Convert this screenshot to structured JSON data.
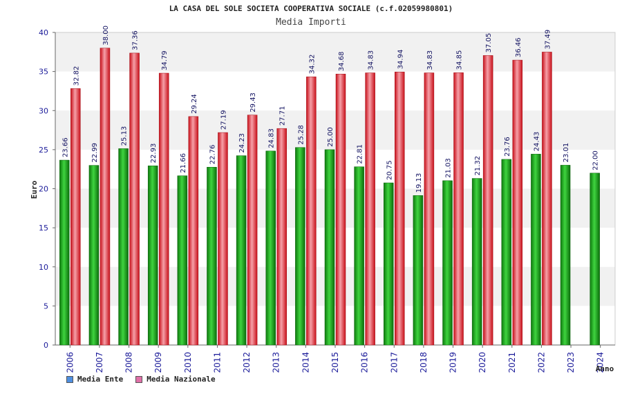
{
  "chart_data": {
    "type": "bar",
    "title": "LA CASA DEL SOLE SOCIETA COOPERATIVA SOCIALE (c.f.02059980801)",
    "subtitle": "Media Importi",
    "xlabel": "Anno",
    "ylabel": "Euro",
    "ylim": [
      0,
      40
    ],
    "yticks": [
      "0",
      "5",
      "10",
      "15",
      "20",
      "25",
      "30",
      "35",
      "40"
    ],
    "grid": "horizontal bands",
    "legend_position": "bottom-left",
    "categories": [
      "2006",
      "2007",
      "2008",
      "2009",
      "2010",
      "2011",
      "2012",
      "2013",
      "2014",
      "2015",
      "2016",
      "2017",
      "2018",
      "2019",
      "2020",
      "2021",
      "2022",
      "2023",
      "2024"
    ],
    "series": [
      {
        "name": "Media Ente",
        "color": "#22b022",
        "values": [
          23.66,
          22.99,
          25.13,
          22.93,
          21.66,
          22.76,
          24.23,
          24.83,
          25.28,
          25.0,
          22.81,
          20.75,
          19.13,
          21.03,
          21.32,
          23.76,
          24.43,
          23.01,
          22.0
        ],
        "labels": [
          "23.66",
          "22.99",
          "25.13",
          "22.93",
          "21.66",
          "22.76",
          "24.23",
          "24.83",
          "25.28",
          "25.00",
          "22.81",
          "20.75",
          "19.13",
          "21.03",
          "21.32",
          "23.76",
          "24.43",
          "23.01",
          "22.00"
        ]
      },
      {
        "name": "Media Nazionale",
        "color": "#e8303a",
        "values": [
          32.82,
          38.0,
          37.36,
          34.79,
          29.24,
          27.19,
          29.43,
          27.71,
          34.32,
          34.68,
          34.83,
          34.94,
          34.83,
          34.85,
          37.05,
          36.46,
          37.49,
          null,
          null
        ],
        "labels": [
          "32.82",
          "38.00",
          "37.36",
          "34.79",
          "29.24",
          "27.19",
          "29.43",
          "27.71",
          "34.32",
          "34.68",
          "34.83",
          "34.94",
          "34.83",
          "34.85",
          "37.05",
          "36.46",
          "37.49",
          null,
          null
        ]
      }
    ]
  },
  "legend": {
    "items": [
      {
        "label": "Media Ente",
        "color": "#4f8fe0"
      },
      {
        "label": "Media Nazionale",
        "color": "#e070a8"
      }
    ]
  }
}
